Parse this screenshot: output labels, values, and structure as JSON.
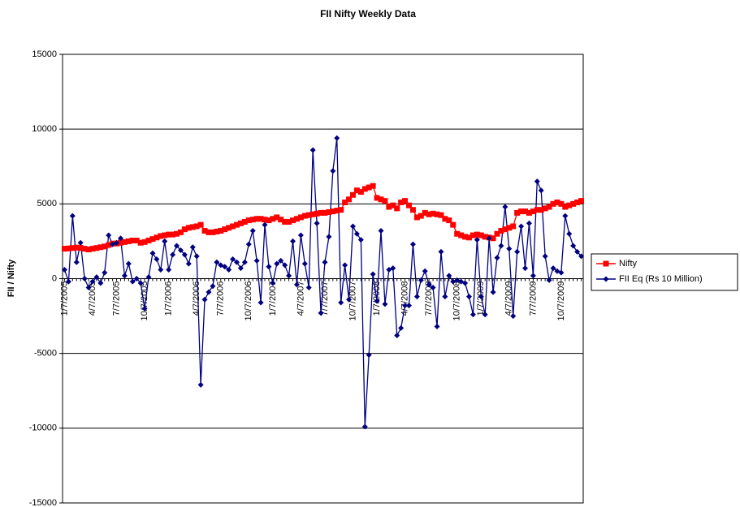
{
  "chart_data": {
    "type": "line",
    "title": "FII Nifty Weekly Data",
    "y_label": "FII / Nifty",
    "categories": [
      "1/7/2005",
      null,
      null,
      null,
      null,
      null,
      null,
      "4/7/2005",
      null,
      null,
      null,
      null,
      null,
      "7/7/2005",
      null,
      null,
      null,
      null,
      null,
      null,
      "10/7/2005",
      null,
      null,
      null,
      null,
      null,
      "1/7/2006",
      null,
      null,
      null,
      null,
      null,
      null,
      "4/7/2006",
      null,
      null,
      null,
      null,
      null,
      "7/7/2006",
      null,
      null,
      null,
      null,
      null,
      null,
      "10/7/2006",
      null,
      null,
      null,
      null,
      null,
      "1/7/2007",
      null,
      null,
      null,
      null,
      null,
      null,
      "4/7/2007",
      null,
      null,
      null,
      null,
      null,
      "7/7/2007",
      null,
      null,
      null,
      null,
      null,
      null,
      "10/7/2007",
      null,
      null,
      null,
      null,
      null,
      "1/7/2008",
      null,
      null,
      null,
      null,
      null,
      null,
      "4/7/2008",
      null,
      null,
      null,
      null,
      null,
      "7/7/2008",
      null,
      null,
      null,
      null,
      null,
      null,
      "10/7/2008",
      null,
      null,
      null,
      null,
      null,
      "1/7/2009",
      null,
      null,
      null,
      null,
      null,
      null,
      "4/7/2009",
      null,
      null,
      null,
      null,
      null,
      "7/7/2009",
      null,
      null,
      null,
      null,
      null,
      null,
      "10/7/2009",
      null,
      null,
      null,
      null,
      null
    ],
    "series": [
      {
        "name": "Nifty",
        "color": "#ff0000",
        "marker": "square",
        "values": [
          2000,
          2020,
          2050,
          2080,
          2060,
          2000,
          1950,
          2000,
          2050,
          2100,
          2150,
          2250,
          2350,
          2350,
          2400,
          2450,
          2500,
          2550,
          2550,
          2400,
          2450,
          2550,
          2650,
          2750,
          2850,
          2900,
          2950,
          2950,
          3000,
          3100,
          3300,
          3400,
          3450,
          3500,
          3600,
          3200,
          3100,
          3100,
          3150,
          3200,
          3300,
          3400,
          3500,
          3600,
          3700,
          3800,
          3900,
          3950,
          4000,
          4000,
          3950,
          3900,
          4000,
          4100,
          3950,
          3800,
          3800,
          3900,
          4000,
          4100,
          4200,
          4250,
          4300,
          4350,
          4400,
          4400,
          4450,
          4500,
          4550,
          4600,
          5100,
          5300,
          5600,
          5900,
          5800,
          6000,
          6100,
          6200,
          5400,
          5300,
          5200,
          4800,
          4900,
          4700,
          5100,
          5200,
          4900,
          4600,
          4100,
          4200,
          4400,
          4300,
          4350,
          4300,
          4250,
          4000,
          3900,
          3600,
          3000,
          2900,
          2800,
          2750,
          2900,
          2950,
          2900,
          2800,
          2750,
          2700,
          3000,
          3200,
          3300,
          3400,
          3500,
          4400,
          4500,
          4500,
          4400,
          4500,
          4600,
          4600,
          4700,
          4800,
          5000,
          5100,
          5000,
          4800,
          4900,
          5000,
          5100,
          5200
        ]
      },
      {
        "name": "FII Eq (Rs 10 Million)",
        "color": "#000080",
        "marker": "diamond",
        "values": [
          600,
          -200,
          4200,
          1100,
          2400,
          0,
          -600,
          -200,
          100,
          -300,
          400,
          2900,
          2300,
          2400,
          2700,
          200,
          1000,
          -200,
          0,
          -300,
          -2000,
          100,
          1700,
          1300,
          600,
          2500,
          600,
          1600,
          2200,
          1900,
          1600,
          1000,
          2100,
          1500,
          -7100,
          -1400,
          -900,
          -500,
          1100,
          900,
          800,
          600,
          1300,
          1100,
          700,
          1100,
          2300,
          3200,
          1200,
          -1600,
          3600,
          800,
          -300,
          1000,
          1200,
          900,
          200,
          2500,
          -400,
          2900,
          1000,
          -600,
          8600,
          3700,
          -2300,
          1100,
          2800,
          7200,
          9400,
          -1600,
          900,
          -1400,
          3500,
          3000,
          2600,
          -9900,
          -5100,
          300,
          -1500,
          3200,
          -1700,
          600,
          700,
          -3800,
          -3300,
          -1800,
          -1800,
          2300,
          -1200,
          -100,
          500,
          -400,
          -600,
          -3200,
          1800,
          -1200,
          200,
          -200,
          -100,
          -200,
          -300,
          -1200,
          -2400,
          2600,
          -1200,
          -2400,
          2700,
          -900,
          1400,
          2200,
          4800,
          2000,
          -2500,
          1800,
          3500,
          700,
          3700,
          200,
          6500,
          5900,
          1500,
          -100,
          700,
          500,
          400,
          4200,
          3000,
          2200,
          1800,
          1500
        ]
      }
    ],
    "ylim": [
      -15000,
      15000
    ],
    "yticks": [
      -15000,
      -10000,
      -5000,
      0,
      5000,
      10000,
      15000
    ],
    "grid": true,
    "legend": "right"
  }
}
